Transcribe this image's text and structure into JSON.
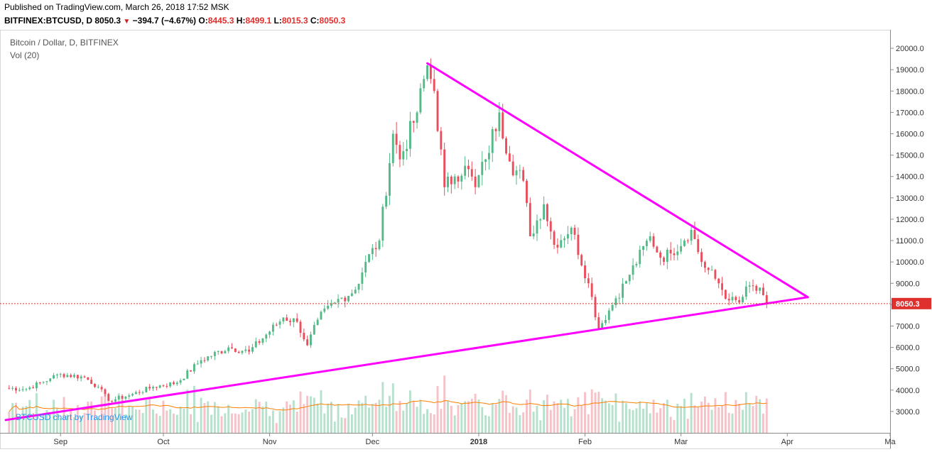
{
  "header": {
    "published": "Published on TradingView.com, March 26, 2018 17:52 MSK",
    "symbol": "BITFINEX:BTCUSD, D",
    "last": "8050.3",
    "change": "−394.7 (−4.67%)",
    "o_label": "O:",
    "o_value": "8445.3",
    "h_label": "H:",
    "h_value": "8499.1",
    "l_label": "L:",
    "l_value": "8015.3",
    "c_label": "C:",
    "c_value": "8050.3"
  },
  "legend": {
    "title": "Bitcoin / Dollar, D, BITFINEX",
    "volume": "Vol (20)"
  },
  "watermark": "BTCUSD chart by TradingView",
  "colors": {
    "up": "#53b987",
    "down": "#eb4d5c",
    "trendline": "#ff00ff",
    "ma": "#ff7f00",
    "price_line": "#e0302e"
  },
  "chart_data": {
    "type": "candlestick",
    "interval": "D",
    "y_ticks": [
      "20000.0",
      "19000.0",
      "18000.0",
      "17000.0",
      "16000.0",
      "15000.0",
      "14000.0",
      "13000.0",
      "12000.0",
      "11000.0",
      "10000.0",
      "9000.0",
      "8000.0",
      "7000.0",
      "6000.0",
      "5000.0",
      "4000.0",
      "3000.0"
    ],
    "y_range": [
      2000,
      20700
    ],
    "x_ticks": [
      "Sep",
      "Oct",
      "Nov",
      "Dec",
      "2018",
      "Feb",
      "Mar",
      "Apr",
      "Ma"
    ],
    "x_tick_dates": [
      "2017-09-01",
      "2017-10-01",
      "2017-11-01",
      "2017-12-01",
      "2018-01-01",
      "2018-02-01",
      "2018-03-01",
      "2018-04-01",
      "2018-05-01"
    ],
    "x_range": [
      "2017-08-16",
      "2018-05-01"
    ],
    "last_price": 8050.3,
    "closes_anchor": [
      [
        "2017-08-16",
        4100
      ],
      [
        "2017-08-22",
        4050
      ],
      [
        "2017-08-29",
        4550
      ],
      [
        "2017-09-01",
        4750
      ],
      [
        "2017-09-08",
        4600
      ],
      [
        "2017-09-12",
        4150
      ],
      [
        "2017-09-15",
        3500
      ],
      [
        "2017-09-21",
        3750
      ],
      [
        "2017-09-28",
        4150
      ],
      [
        "2017-10-05",
        4350
      ],
      [
        "2017-10-12",
        5400
      ],
      [
        "2017-10-20",
        6000
      ],
      [
        "2017-10-26",
        5800
      ],
      [
        "2017-11-05",
        7400
      ],
      [
        "2017-11-09",
        7200
      ],
      [
        "2017-11-12",
        6100
      ],
      [
        "2017-11-15",
        7300
      ],
      [
        "2017-11-20",
        8100
      ],
      [
        "2017-11-26",
        8700
      ],
      [
        "2017-11-29",
        10000
      ],
      [
        "2017-12-03",
        11000
      ],
      [
        "2017-12-07",
        16000
      ],
      [
        "2017-12-09",
        14800
      ],
      [
        "2017-12-14",
        17000
      ],
      [
        "2017-12-17",
        19200
      ],
      [
        "2017-12-19",
        18000
      ],
      [
        "2017-12-22",
        13500
      ],
      [
        "2017-12-25",
        14000
      ],
      [
        "2017-12-28",
        14500
      ],
      [
        "2017-12-31",
        13500
      ],
      [
        "2018-01-03",
        14800
      ],
      [
        "2018-01-07",
        17000
      ],
      [
        "2018-01-10",
        14700
      ],
      [
        "2018-01-14",
        13800
      ],
      [
        "2018-01-16",
        11200
      ],
      [
        "2018-01-20",
        12700
      ],
      [
        "2018-01-23",
        10800
      ],
      [
        "2018-01-28",
        11600
      ],
      [
        "2018-02-02",
        9000
      ],
      [
        "2018-02-05",
        6900
      ],
      [
        "2018-02-10",
        8300
      ],
      [
        "2018-02-14",
        9400
      ],
      [
        "2018-02-20",
        11200
      ],
      [
        "2018-02-23",
        10200
      ],
      [
        "2018-02-26",
        10400
      ],
      [
        "2018-03-04",
        11500
      ],
      [
        "2018-03-07",
        10000
      ],
      [
        "2018-03-12",
        9000
      ],
      [
        "2018-03-15",
        8200
      ],
      [
        "2018-03-18",
        8100
      ],
      [
        "2018-03-21",
        8900
      ],
      [
        "2018-03-25",
        8445
      ],
      [
        "2018-03-26",
        8050.3
      ]
    ],
    "trendlines": [
      {
        "name": "upper",
        "from": [
          "2017-12-17",
          19300
        ],
        "to": [
          "2018-04-07",
          8350
        ]
      },
      {
        "name": "lower",
        "from": [
          "2017-08-16",
          2600
        ],
        "to": [
          "2018-04-07",
          8350
        ]
      }
    ]
  }
}
